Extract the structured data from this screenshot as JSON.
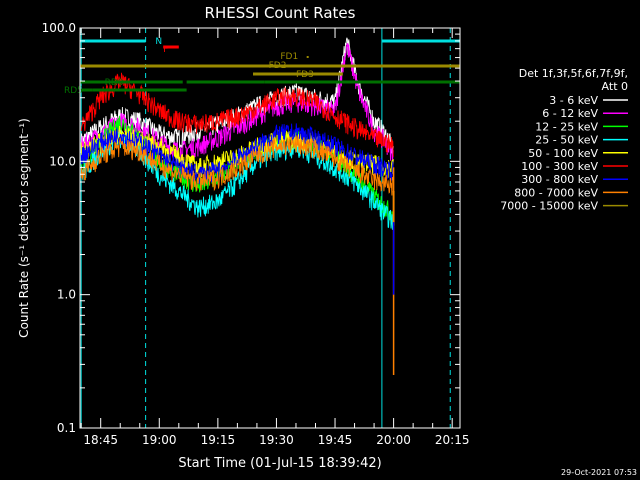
{
  "chart_data": {
    "type": "line",
    "title": "RHESSI Count Rates",
    "xlabel": "Start Time (01-Jul-15 18:39:42)",
    "ylabel": "Count Rate (s⁻¹ detector segment⁻¹)",
    "y_scale": "log",
    "ylim": [
      0.1,
      100.0
    ],
    "xlim": [
      "18:39:42",
      "20:17:00"
    ],
    "x_ticks": [
      "18:45",
      "19:00",
      "19:15",
      "19:30",
      "19:45",
      "20:00",
      "20:15"
    ],
    "y_ticks": [
      "0.1",
      "1.0",
      "10.0",
      "100.0"
    ],
    "grid": false,
    "legend_position": "right",
    "legend_header": [
      "Det 1f,3f,5f,6f,7f,9f,",
      "Att 0"
    ],
    "timestamp": "29-Oct-2021 07:53",
    "series": [
      {
        "name": "3 - 6 keV",
        "color": "#ffffff",
        "x": [
          "18:40",
          "18:45",
          "18:50",
          "18:55",
          "19:00",
          "19:05",
          "19:10",
          "19:15",
          "19:20",
          "19:25",
          "19:30",
          "19:35",
          "19:40",
          "19:45",
          "19:48",
          "19:51",
          "19:55",
          "19:58",
          "20:00"
        ],
        "values": [
          14,
          18,
          22,
          20,
          16,
          15,
          17,
          19,
          22,
          26,
          30,
          33,
          30,
          28,
          80,
          38,
          20,
          16,
          12
        ]
      },
      {
        "name": "6 - 12 keV",
        "color": "#ff00ff",
        "x": [
          "18:40",
          "18:45",
          "18:50",
          "18:55",
          "19:00",
          "19:05",
          "19:10",
          "19:15",
          "19:20",
          "19:25",
          "19:30",
          "19:35",
          "19:40",
          "19:45",
          "19:48",
          "19:51",
          "19:55",
          "19:58",
          "20:00"
        ],
        "values": [
          13,
          16,
          20,
          18,
          14,
          12,
          13,
          15,
          18,
          22,
          26,
          28,
          26,
          24,
          75,
          34,
          17,
          14,
          11
        ]
      },
      {
        "name": "12 - 25 keV",
        "color": "#00ff00",
        "x": [
          "18:40",
          "18:45",
          "18:50",
          "18:55",
          "19:00",
          "19:05",
          "19:10",
          "19:15",
          "19:20",
          "19:25",
          "19:30",
          "19:35",
          "19:40",
          "19:45",
          "19:50",
          "19:55",
          "19:58",
          "20:00"
        ],
        "values": [
          9,
          14,
          20,
          15,
          10,
          8,
          6.5,
          7.5,
          10,
          12,
          14,
          15,
          13,
          11,
          8,
          5.5,
          4.5,
          4
        ]
      },
      {
        "name": "25 - 50 keV",
        "color": "#00ffff",
        "x": [
          "18:40",
          "18:45",
          "18:50",
          "18:55",
          "19:00",
          "19:05",
          "19:10",
          "19:15",
          "19:20",
          "19:25",
          "19:30",
          "19:35",
          "19:40",
          "19:45",
          "19:50",
          "19:55",
          "19:58",
          "20:00"
        ],
        "values": [
          8,
          12,
          15,
          12,
          8,
          6,
          4.5,
          5,
          7,
          10,
          12,
          13,
          11,
          9,
          7,
          5,
          4,
          3.5
        ]
      },
      {
        "name": "50 - 100 keV",
        "color": "#ffff00",
        "x": [
          "18:40",
          "18:50",
          "19:00",
          "19:10",
          "19:20",
          "19:30",
          "19:40",
          "19:50",
          "20:00"
        ],
        "values": [
          12,
          16,
          13,
          9,
          11,
          15,
          14,
          10,
          9
        ]
      },
      {
        "name": "100 - 300 keV",
        "color": "#ff0000",
        "x": [
          "18:40",
          "18:45",
          "18:50",
          "18:55",
          "19:00",
          "19:05",
          "19:10",
          "19:15",
          "19:20",
          "19:25",
          "19:30",
          "19:35",
          "19:40",
          "19:45",
          "19:50",
          "19:55",
          "19:58",
          "20:00"
        ],
        "values": [
          18,
          30,
          40,
          32,
          24,
          20,
          19,
          20,
          22,
          25,
          30,
          31,
          28,
          22,
          18,
          15,
          14,
          13
        ]
      },
      {
        "name": "300 - 800 keV",
        "color": "#0000ff",
        "x": [
          "18:40",
          "18:45",
          "18:50",
          "18:55",
          "19:00",
          "19:05",
          "19:10",
          "19:15",
          "19:20",
          "19:25",
          "19:30",
          "19:35",
          "19:40",
          "19:45",
          "19:50",
          "19:55",
          "19:58",
          "20:00"
        ],
        "values": [
          11,
          14,
          16,
          14,
          11,
          9,
          8,
          8.5,
          10.5,
          13,
          16,
          16.5,
          15,
          13,
          11,
          9.5,
          9,
          8.5
        ]
      },
      {
        "name": "800 - 7000 keV",
        "color": "#ff8000",
        "x": [
          "18:40",
          "18:45",
          "18:50",
          "18:55",
          "19:00",
          "19:05",
          "19:10",
          "19:15",
          "19:20",
          "19:25",
          "19:30",
          "19:35",
          "19:40",
          "19:45",
          "19:50",
          "19:55",
          "19:58",
          "20:00"
        ],
        "values": [
          8,
          11,
          13,
          12,
          9.5,
          8,
          7,
          7.5,
          9,
          11,
          13,
          13.5,
          12.5,
          10.5,
          8.5,
          7.2,
          6.8,
          6.5
        ]
      },
      {
        "name": "7000 - 15000 keV",
        "color": "#9a8a00",
        "x": [
          "20:00"
        ],
        "values": [
          6
        ]
      }
    ],
    "annotations": {
      "N_label": "N",
      "F_label": "F",
      "RD0_label": "RD0",
      "RD5_label": "RD5",
      "FD1_label": "FD1",
      "FD2_label": "FD2",
      "FD3_label": "FD3",
      "night_bars": [
        {
          "start": "18:39:42",
          "end": "18:56:30"
        },
        {
          "start": "19:57:00",
          "end": "20:17:00"
        }
      ],
      "flare_bar": {
        "start": "19:01",
        "end": "19:05"
      },
      "fd2_bar": {
        "start": "18:39:42",
        "end": "20:17:00"
      },
      "fd3_bar": {
        "start": "19:24",
        "end": "19:47"
      },
      "rd0_bars": [
        {
          "start": "18:39:42",
          "end": "19:06"
        },
        {
          "start": "19:07",
          "end": "19:27"
        },
        {
          "start": "19:27",
          "end": "20:17:00"
        }
      ],
      "rd5_bar": {
        "start": "18:43",
        "end": "19:07"
      },
      "saa_lines": [
        "18:40:00",
        "18:56:30",
        "19:57:00",
        "20:14:30"
      ]
    }
  }
}
